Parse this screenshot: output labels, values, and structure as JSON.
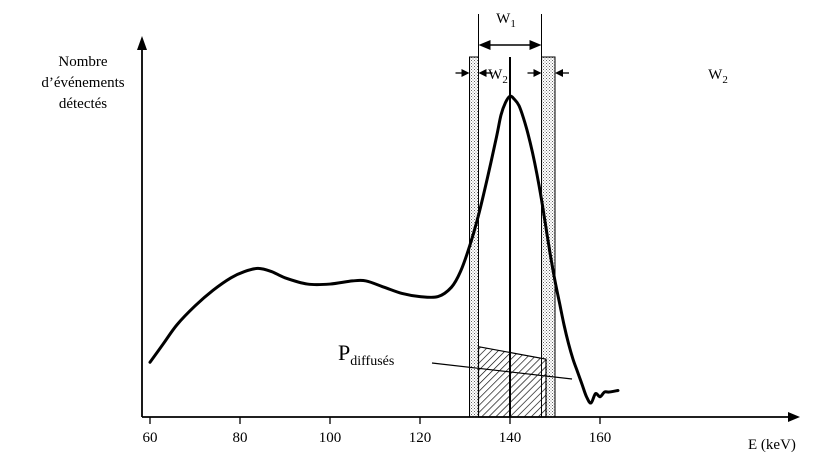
{
  "chart_data": {
    "type": "line",
    "title": "",
    "xlabel": "E (keV)",
    "ylabel": [
      "Nombre",
      "d’événements",
      "détectés"
    ],
    "xlim": [
      58,
      170
    ],
    "ylim": [
      0,
      1
    ],
    "x_ticks": [
      60,
      80,
      100,
      120,
      140,
      160
    ],
    "grid": false,
    "series": [
      {
        "x": [
          60,
          63,
          66,
          70,
          74,
          78,
          81,
          84,
          87,
          90,
          95,
          100,
          105,
          108,
          112,
          116,
          120,
          124,
          127,
          129,
          131,
          133,
          135,
          137,
          138,
          139,
          140,
          141,
          142,
          143,
          144,
          145,
          146,
          147,
          148,
          149,
          150,
          151,
          152,
          153,
          154,
          155,
          156,
          157,
          158,
          159,
          160,
          161,
          162,
          164
        ],
        "y": [
          0.13,
          0.19,
          0.25,
          0.31,
          0.36,
          0.4,
          0.42,
          0.43,
          0.42,
          0.4,
          0.38,
          0.38,
          0.39,
          0.39,
          0.37,
          0.35,
          0.34,
          0.34,
          0.37,
          0.42,
          0.5,
          0.6,
          0.72,
          0.85,
          0.92,
          0.96,
          0.98,
          0.97,
          0.95,
          0.91,
          0.86,
          0.8,
          0.73,
          0.65,
          0.56,
          0.47,
          0.39,
          0.32,
          0.25,
          0.19,
          0.14,
          0.1,
          0.06,
          0.02,
          0.0,
          0.03,
          0.02,
          0.035,
          0.035,
          0.04
        ]
      }
    ],
    "windows": {
      "W1": {
        "label_main": "W",
        "label_sub": "1",
        "center": 140,
        "range": [
          133,
          147
        ]
      },
      "W2_left": {
        "label_main": "W",
        "label_sub": "2",
        "range": [
          131,
          133
        ]
      },
      "W2_right": {
        "label_main": "W",
        "label_sub": "2",
        "range": [
          147,
          150
        ]
      }
    },
    "scatter_region": {
      "label_main": "P",
      "label_sub": "diffusés",
      "x_range": [
        133,
        148
      ],
      "y_top_left": 0.18,
      "y_top_right": 0.14
    }
  }
}
